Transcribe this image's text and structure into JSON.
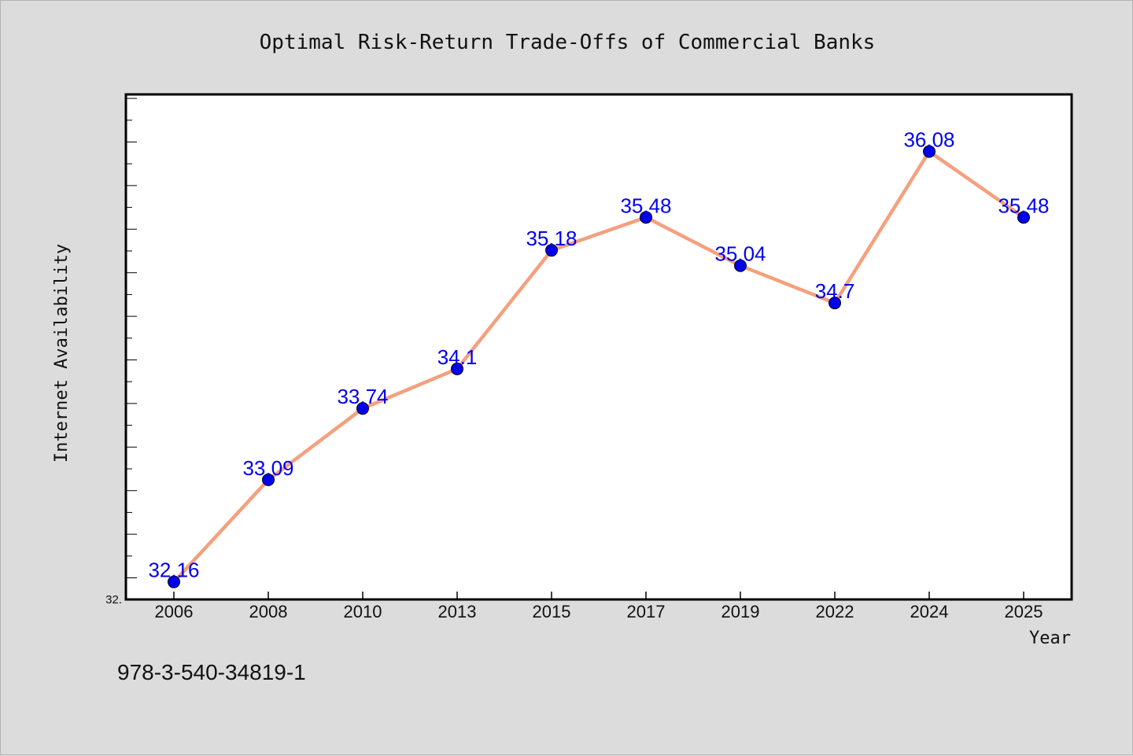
{
  "chart_data": {
    "type": "line",
    "title": "Optimal Risk-Return Trade-Offs of Commercial Banks",
    "xlabel": "Year",
    "ylabel": "Internet Availability",
    "categories": [
      "2006",
      "2008",
      "2010",
      "2013",
      "2015",
      "2017",
      "2019",
      "2022",
      "2024",
      "2025"
    ],
    "values": [
      32.16,
      33.09,
      33.74,
      34.1,
      35.18,
      35.48,
      35.04,
      34.7,
      36.08,
      35.48
    ],
    "data_labels": [
      "32.16",
      "33.09",
      "33.74",
      "34.1",
      "35.18",
      "35.48",
      "35.04",
      "34.7",
      "36.08",
      "35.48"
    ],
    "y_tick_labels": [
      "32."
    ],
    "ylim": [
      32.0,
      36.6
    ],
    "grid": false,
    "line_color": "#f4a07e",
    "marker_color": "#0000ee",
    "label_color": "#0000ee",
    "background_color": "#dcdcdc",
    "plot_background_color": "#ffffff"
  },
  "footer": {
    "text": "978-3-540-34819-1"
  }
}
